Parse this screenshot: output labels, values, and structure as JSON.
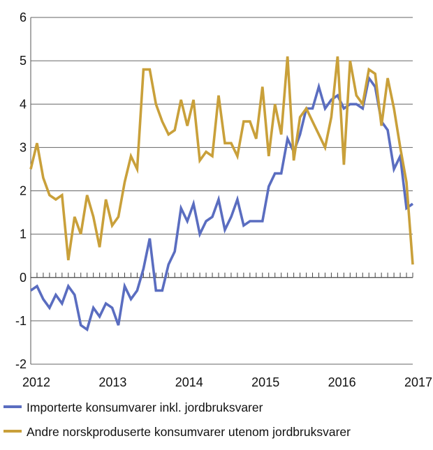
{
  "chart_data": {
    "type": "line",
    "title": "",
    "xlabel": "",
    "ylabel": "",
    "ylim": [
      -2,
      6
    ],
    "yticks": [
      "-2",
      "-1",
      "0",
      "1",
      "2",
      "3",
      "4",
      "5",
      "6"
    ],
    "xtick_labels": [
      "2012",
      "2013",
      "2014",
      "2015",
      "2016",
      "2017"
    ],
    "grid": true,
    "legend_placement": "bottom",
    "series": [
      {
        "name": "Importerte konsumvarer inkl. jordbruksvarer",
        "color": "#5a6dc0",
        "values": [
          -0.3,
          -0.2,
          -0.5,
          -0.7,
          -0.4,
          -0.6,
          -0.2,
          -0.4,
          -1.1,
          -1.2,
          -0.7,
          -0.9,
          -0.6,
          -0.7,
          -1.1,
          -0.2,
          -0.5,
          -0.3,
          0.2,
          0.9,
          -0.3,
          -0.3,
          0.3,
          0.6,
          1.6,
          1.3,
          1.7,
          1.0,
          1.3,
          1.4,
          1.8,
          1.1,
          1.4,
          1.8,
          1.2,
          1.3,
          1.3,
          1.3,
          2.1,
          2.4,
          2.4,
          3.2,
          2.9,
          3.3,
          3.9,
          3.9,
          4.4,
          3.9,
          4.1,
          4.2,
          3.9,
          4.0,
          4.0,
          3.9,
          4.6,
          4.4,
          3.6,
          3.4,
          2.5,
          2.8,
          1.6,
          1.7
        ]
      },
      {
        "name": "Andre norskproduserte konsumvarer utenom jordbruksvarer",
        "color": "#c9a03a",
        "values": [
          2.5,
          3.1,
          2.3,
          1.9,
          1.8,
          1.9,
          0.4,
          1.4,
          1.0,
          1.9,
          1.4,
          0.7,
          1.8,
          1.2,
          1.4,
          2.2,
          2.8,
          2.5,
          4.8,
          4.8,
          4.0,
          3.6,
          3.3,
          3.4,
          4.1,
          3.5,
          4.1,
          2.7,
          2.9,
          2.8,
          4.2,
          3.1,
          3.1,
          2.8,
          3.6,
          3.6,
          3.2,
          4.4,
          2.8,
          4.0,
          3.3,
          5.1,
          2.7,
          3.7,
          3.9,
          3.6,
          3.3,
          3.0,
          3.7,
          5.1,
          2.6,
          5.0,
          4.2,
          4.0,
          4.8,
          4.7,
          3.5,
          4.6,
          3.9,
          3.0,
          2.2,
          0.3
        ]
      }
    ]
  }
}
